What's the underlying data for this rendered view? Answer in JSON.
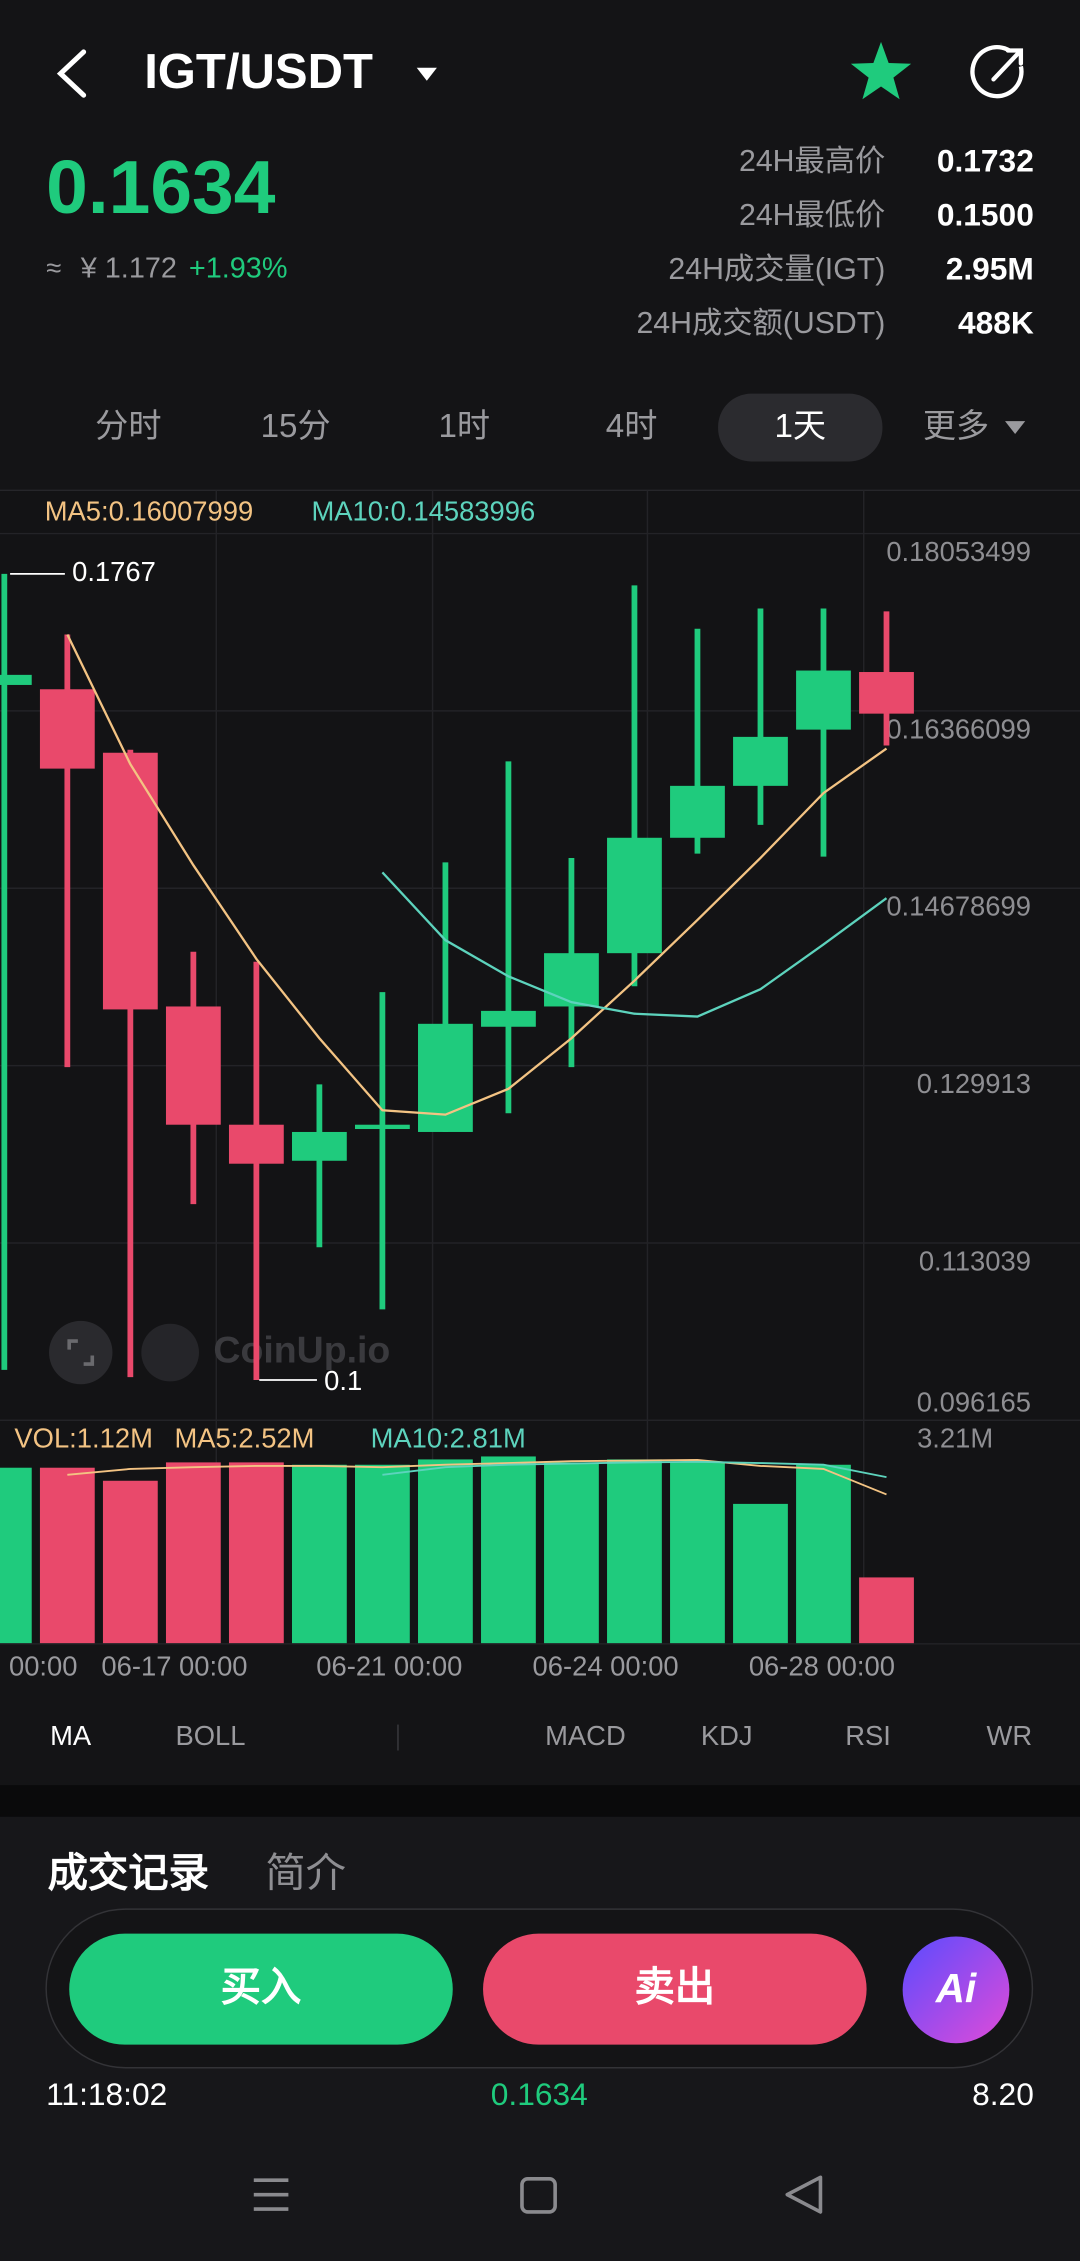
{
  "header": {
    "pair": "IGT/USDT"
  },
  "ticker": {
    "price": "0.1634",
    "approx": "≈",
    "cny": "¥ 1.172",
    "change": "+1.93%",
    "stats": [
      {
        "label": "24H最高价",
        "value": "0.1732"
      },
      {
        "label": "24H最低价",
        "value": "0.1500"
      },
      {
        "label": "24H成交量(IGT)",
        "value": "2.95M"
      },
      {
        "label": "24H成交额(USDT)",
        "value": "488K"
      }
    ]
  },
  "intervals": {
    "items": [
      "分时",
      "15分",
      "1时",
      "4时",
      "1天",
      "更多"
    ],
    "selected": 4
  },
  "chart_data": {
    "type": "candlestick",
    "up_color": "#1fcb7d",
    "down_color": "#e9496b",
    "candles": [
      {
        "open": 0.16613,
        "high": 0.1767,
        "low": 0.10096,
        "close": 0.16709
      },
      {
        "open": 0.16572,
        "high": 0.17093,
        "low": 0.12977,
        "close": 0.15817
      },
      {
        "open": 0.15968,
        "high": 0.15996,
        "low": 0.10028,
        "close": 0.13526
      },
      {
        "open": 0.13554,
        "high": 0.14075,
        "low": 0.11674,
        "close": 0.12429
      },
      {
        "open": 0.12429,
        "high": 0.13979,
        "low": 0.1,
        "close": 0.12058
      },
      {
        "open": 0.12086,
        "high": 0.12813,
        "low": 0.11263,
        "close": 0.1236
      },
      {
        "open": 0.12388,
        "high": 0.13691,
        "low": 0.10672,
        "close": 0.12429
      },
      {
        "open": 0.1236,
        "high": 0.14925,
        "low": 0.1236,
        "close": 0.13389
      },
      {
        "open": 0.13361,
        "high": 0.15886,
        "low": 0.12538,
        "close": 0.13512
      },
      {
        "open": 0.13554,
        "high": 0.14967,
        "low": 0.12977,
        "close": 0.14061
      },
      {
        "open": 0.14061,
        "high": 0.1756,
        "low": 0.13746,
        "close": 0.15159
      },
      {
        "open": 0.15159,
        "high": 0.17148,
        "low": 0.15008,
        "close": 0.15653
      },
      {
        "open": 0.15653,
        "high": 0.1734,
        "low": 0.15282,
        "close": 0.16119
      },
      {
        "open": 0.16188,
        "high": 0.1734,
        "low": 0.1498,
        "close": 0.1675
      },
      {
        "open": 0.16736,
        "high": 0.17313,
        "low": 0.16037,
        "close": 0.1634
      }
    ],
    "series": [
      {
        "name": "MA5:0.16007999",
        "color": "#f3c383",
        "values": [
          null,
          0.17093,
          0.15858,
          0.14898,
          0.14006,
          0.13252,
          0.12566,
          0.12525,
          0.12771,
          0.13252,
          0.138,
          0.14377,
          0.14967,
          0.15584,
          0.16008
        ]
      },
      {
        "name": "MA10:0.14583996",
        "color": "#5dd3bd",
        "values": [
          null,
          null,
          null,
          null,
          null,
          null,
          0.14829,
          0.14185,
          0.13841,
          0.13595,
          0.13485,
          0.13458,
          0.13718,
          0.14143,
          0.14584
        ]
      }
    ],
    "ylim": [
      0.096165,
      0.18053499
    ],
    "yticks": [
      0.18053499,
      0.16366099,
      0.14678699,
      0.129913,
      0.113039,
      0.096165
    ],
    "high_label": "0.1767",
    "low_label": "0.1",
    "watermark": "CoinUp.io",
    "xticks": [
      "00:00",
      "06-17 00:00",
      "06-21 00:00",
      "06-24 00:00",
      "06-28 00:00"
    ],
    "volume": {
      "label": "VOL:1.12M",
      "label_color": "#f3c383",
      "values": [
        2.97,
        2.97,
        2.75,
        3.06,
        3.06,
        3.02,
        3.02,
        3.11,
        3.16,
        3.06,
        3.11,
        3.06,
        2.36,
        3.02,
        1.12
      ],
      "ylim": [
        0,
        3.21
      ],
      "yticks": [
        {
          "value": 3.21,
          "label": "3.21M"
        }
      ],
      "series": [
        {
          "name": "MA5:2.52M",
          "color": "#f3c383",
          "values": [
            null,
            2.85,
            2.95,
            2.98,
            3.0,
            3.0,
            2.98,
            3.02,
            3.05,
            3.08,
            3.09,
            3.1,
            3.0,
            2.95,
            2.52
          ]
        },
        {
          "name": "MA10:2.81M",
          "color": "#5dd3bd",
          "values": [
            null,
            null,
            null,
            null,
            null,
            null,
            2.85,
            2.98,
            3.02,
            3.04,
            3.06,
            3.07,
            3.05,
            3.02,
            2.81
          ]
        }
      ]
    }
  },
  "indicators": {
    "items": [
      "MA",
      "BOLL",
      "MACD",
      "KDJ",
      "RSI",
      "WR"
    ],
    "selected": 0
  },
  "tabs": [
    "成交记录",
    "简介"
  ],
  "actions": {
    "buy": "买入",
    "sell": "卖出",
    "ai": "Ai"
  },
  "last_trade": {
    "time": "11:18:02",
    "price": "0.1634",
    "amount": "8.20"
  }
}
